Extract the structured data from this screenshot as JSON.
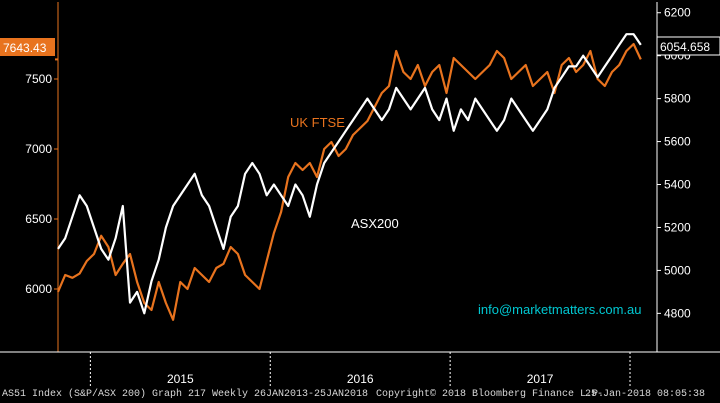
{
  "chart_data": {
    "type": "line",
    "title": "",
    "xlabel": "",
    "x_tick_labels": [
      "2015",
      "2016",
      "2017"
    ],
    "x_start_year": 2015,
    "left_axis": {
      "series": "UK FTSE",
      "ylim": [
        5550,
        8050
      ],
      "ticks": [
        6000,
        6500,
        7000,
        7500
      ]
    },
    "right_axis": {
      "series": "ASX200",
      "ylim": [
        4620,
        6250
      ],
      "ticks": [
        4800,
        5000,
        5200,
        5400,
        5600,
        5800,
        6000,
        6200
      ]
    },
    "last_value_left": "7643.43",
    "last_value_right": "6054.658",
    "series": [
      {
        "name": "UK FTSE",
        "color": "#e8731e",
        "axis": "left",
        "x": [
          2014.82,
          2014.86,
          2014.9,
          2014.94,
          2014.98,
          2015.02,
          2015.06,
          2015.1,
          2015.14,
          2015.18,
          2015.22,
          2015.26,
          2015.3,
          2015.34,
          2015.38,
          2015.42,
          2015.46,
          2015.5,
          2015.54,
          2015.58,
          2015.62,
          2015.66,
          2015.7,
          2015.74,
          2015.78,
          2015.82,
          2015.86,
          2015.9,
          2015.94,
          2015.98,
          2016.02,
          2016.06,
          2016.1,
          2016.14,
          2016.18,
          2016.22,
          2016.26,
          2016.3,
          2016.34,
          2016.38,
          2016.42,
          2016.46,
          2016.5,
          2016.54,
          2016.58,
          2016.62,
          2016.66,
          2016.7,
          2016.74,
          2016.78,
          2016.82,
          2016.86,
          2016.9,
          2016.94,
          2016.98,
          2017.02,
          2017.06,
          2017.1,
          2017.14,
          2017.18,
          2017.22,
          2017.26,
          2017.3,
          2017.34,
          2017.38,
          2017.42,
          2017.46,
          2017.5,
          2017.54,
          2017.58,
          2017.62,
          2017.66,
          2017.7,
          2017.74,
          2017.78,
          2017.82,
          2017.86,
          2017.9,
          2017.94,
          2017.98,
          2018.02,
          2018.06
        ],
        "values": [
          5980,
          6100,
          6080,
          6110,
          6200,
          6250,
          6380,
          6300,
          6100,
          6180,
          6250,
          6050,
          5900,
          5850,
          6050,
          5900,
          5780,
          6050,
          6000,
          6150,
          6100,
          6050,
          6150,
          6180,
          6300,
          6250,
          6100,
          6050,
          6000,
          6200,
          6400,
          6550,
          6800,
          6900,
          6850,
          6900,
          6800,
          7000,
          7050,
          6950,
          7000,
          7100,
          7150,
          7200,
          7300,
          7400,
          7450,
          7700,
          7550,
          7500,
          7600,
          7450,
          7550,
          7600,
          7400,
          7650,
          7600,
          7550,
          7500,
          7550,
          7600,
          7700,
          7650,
          7500,
          7550,
          7600,
          7450,
          7500,
          7550,
          7400,
          7600,
          7650,
          7550,
          7600,
          7700,
          7500,
          7450,
          7550,
          7600,
          7700,
          7750,
          7640
        ],
        "smooth": false
      },
      {
        "name": "ASX200",
        "color": "#ffffff",
        "axis": "right",
        "x": [
          2014.82,
          2014.86,
          2014.9,
          2014.94,
          2014.98,
          2015.02,
          2015.06,
          2015.1,
          2015.14,
          2015.18,
          2015.22,
          2015.26,
          2015.3,
          2015.34,
          2015.38,
          2015.42,
          2015.46,
          2015.5,
          2015.54,
          2015.58,
          2015.62,
          2015.66,
          2015.7,
          2015.74,
          2015.78,
          2015.82,
          2015.86,
          2015.9,
          2015.94,
          2015.98,
          2016.02,
          2016.06,
          2016.1,
          2016.14,
          2016.18,
          2016.22,
          2016.26,
          2016.3,
          2016.34,
          2016.38,
          2016.42,
          2016.46,
          2016.5,
          2016.54,
          2016.58,
          2016.62,
          2016.66,
          2016.7,
          2016.74,
          2016.78,
          2016.82,
          2016.86,
          2016.9,
          2016.94,
          2016.98,
          2017.02,
          2017.06,
          2017.1,
          2017.14,
          2017.18,
          2017.22,
          2017.26,
          2017.3,
          2017.34,
          2017.38,
          2017.42,
          2017.46,
          2017.5,
          2017.54,
          2017.58,
          2017.62,
          2017.66,
          2017.7,
          2017.74,
          2017.78,
          2017.82,
          2017.86,
          2017.9,
          2017.94,
          2017.98,
          2018.02,
          2018.06
        ],
        "values": [
          5100,
          5150,
          5250,
          5350,
          5300,
          5200,
          5100,
          5050,
          5150,
          5300,
          4850,
          4900,
          4800,
          4950,
          5050,
          5200,
          5300,
          5350,
          5400,
          5450,
          5350,
          5300,
          5200,
          5100,
          5250,
          5300,
          5450,
          5500,
          5450,
          5350,
          5400,
          5350,
          5300,
          5400,
          5350,
          5250,
          5400,
          5500,
          5550,
          5600,
          5650,
          5700,
          5750,
          5800,
          5750,
          5700,
          5750,
          5850,
          5800,
          5750,
          5800,
          5850,
          5750,
          5700,
          5800,
          5650,
          5750,
          5700,
          5800,
          5750,
          5700,
          5650,
          5700,
          5800,
          5750,
          5700,
          5650,
          5700,
          5750,
          5850,
          5900,
          5950,
          5950,
          6000,
          5950,
          5900,
          5950,
          6000,
          6050,
          6100,
          6100,
          6050
        ],
        "smooth": false
      }
    ],
    "annotations": [
      {
        "text": "UK FTSE",
        "color": "#e8731e"
      },
      {
        "text": "ASX200",
        "color": "#ffffff"
      },
      {
        "text": "info@marketmatters.com.au",
        "color": "#00c8d2"
      }
    ]
  },
  "footer": {
    "left": "AS51 Index (S&P/ASX 200) Graph 217  Weekly 26JAN2013-25JAN2018",
    "middle": "Copyright© 2018 Bloomberg Finance L.P.",
    "right": "25-Jan-2018 08:05:38"
  }
}
